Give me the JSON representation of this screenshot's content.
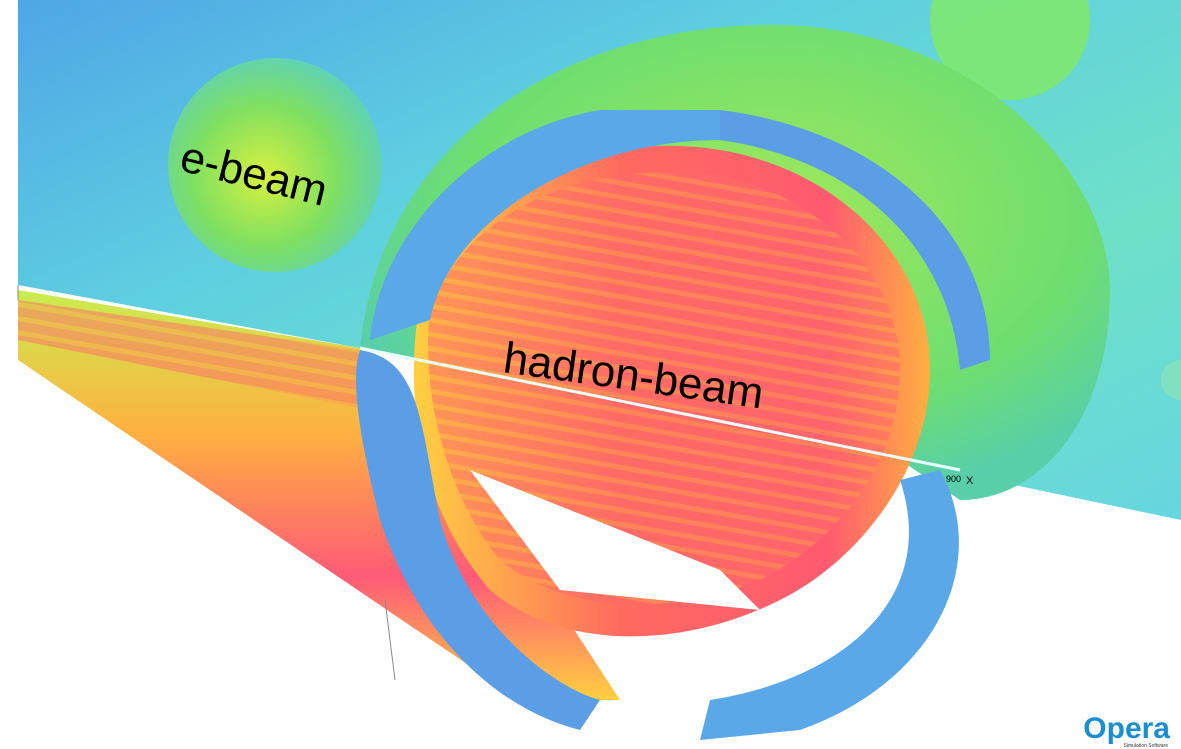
{
  "labels": {
    "e_beam": "e-beam",
    "hadron_beam": "hadron-beam",
    "axis_tick": "900",
    "axis_name": "X"
  },
  "logo": {
    "name": "Opera",
    "tagline": "Simulation Software"
  }
}
